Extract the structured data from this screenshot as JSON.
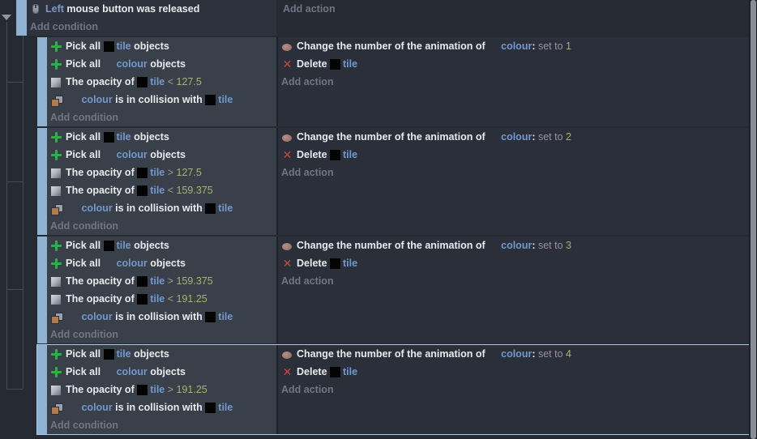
{
  "colors": {
    "page_bg": "#252a33",
    "condition_panel_bg": "#394049",
    "action_panel_bg": "#2a2f39",
    "root_event_bg": "#2d323d",
    "event_handle_blue": "#8fb2d3",
    "selection_border": "#a9cde6",
    "object_name_blue": "#7298cc",
    "number_green": "#a9b173",
    "set_to_mauve": "#9e8fa0",
    "placeholder_gray": "#6f7684",
    "pick_all_green": "#2fb045",
    "delete_red": "#c8493a"
  },
  "root_event": {
    "condition": {
      "icon": "mouse",
      "segs": [
        {
          "t": "param",
          "v": "Left"
        },
        {
          "t": "w",
          "v": " mouse button was released"
        }
      ]
    },
    "add_condition": "Add condition",
    "add_action": "Add action"
  },
  "blocks": [
    {
      "selected": false,
      "conditions": [
        {
          "icon": "pick-all",
          "segs": [
            {
              "t": "w",
              "v": "Pick all "
            },
            {
              "t": "obj",
              "v": "tile",
              "thumb": "black"
            },
            {
              "t": "w",
              "v": " objects"
            }
          ]
        },
        {
          "icon": "pick-all",
          "segs": [
            {
              "t": "w",
              "v": "Pick all "
            },
            {
              "t": "obj",
              "v": "colour",
              "thumb": "none"
            },
            {
              "t": "w",
              "v": " objects"
            }
          ]
        },
        {
          "icon": "opacity",
          "segs": [
            {
              "t": "w",
              "v": "The opacity of "
            },
            {
              "t": "obj",
              "v": "tile",
              "thumb": "black"
            },
            {
              "t": "op",
              "v": " < "
            },
            {
              "t": "num",
              "v": "127.5"
            }
          ]
        },
        {
          "icon": "collision",
          "segs": [
            {
              "t": "w",
              "v": " "
            },
            {
              "t": "obj",
              "v": "colour",
              "thumb": "none"
            },
            {
              "t": "w",
              "v": " is in collision with "
            },
            {
              "t": "obj",
              "v": "tile",
              "thumb": "black"
            }
          ]
        }
      ],
      "actions": [
        {
          "icon": "animation",
          "segs": [
            {
              "t": "w",
              "v": "Change the number of the animation of "
            },
            {
              "t": "obj",
              "v": "colour",
              "thumb": "none"
            },
            {
              "t": "w",
              "v": ": "
            },
            {
              "t": "setto",
              "v": "set to "
            },
            {
              "t": "num",
              "v": "1"
            }
          ]
        },
        {
          "icon": "delete",
          "segs": [
            {
              "t": "w",
              "v": "Delete "
            },
            {
              "t": "obj",
              "v": "tile",
              "thumb": "black"
            }
          ]
        }
      ],
      "add_condition": "Add condition",
      "add_action": "Add action"
    },
    {
      "selected": false,
      "conditions": [
        {
          "icon": "pick-all",
          "segs": [
            {
              "t": "w",
              "v": "Pick all "
            },
            {
              "t": "obj",
              "v": "tile",
              "thumb": "black"
            },
            {
              "t": "w",
              "v": " objects"
            }
          ]
        },
        {
          "icon": "pick-all",
          "segs": [
            {
              "t": "w",
              "v": "Pick all "
            },
            {
              "t": "obj",
              "v": "colour",
              "thumb": "none"
            },
            {
              "t": "w",
              "v": " objects"
            }
          ]
        },
        {
          "icon": "opacity",
          "segs": [
            {
              "t": "w",
              "v": "The opacity of "
            },
            {
              "t": "obj",
              "v": "tile",
              "thumb": "black"
            },
            {
              "t": "op",
              "v": " > "
            },
            {
              "t": "num",
              "v": "127.5"
            }
          ]
        },
        {
          "icon": "opacity",
          "segs": [
            {
              "t": "w",
              "v": "The opacity of "
            },
            {
              "t": "obj",
              "v": "tile",
              "thumb": "black"
            },
            {
              "t": "op",
              "v": " < "
            },
            {
              "t": "num",
              "v": "159.375"
            }
          ]
        },
        {
          "icon": "collision",
          "segs": [
            {
              "t": "w",
              "v": " "
            },
            {
              "t": "obj",
              "v": "colour",
              "thumb": "none"
            },
            {
              "t": "w",
              "v": " is in collision with "
            },
            {
              "t": "obj",
              "v": "tile",
              "thumb": "black"
            }
          ]
        }
      ],
      "actions": [
        {
          "icon": "animation",
          "segs": [
            {
              "t": "w",
              "v": "Change the number of the animation of "
            },
            {
              "t": "obj",
              "v": "colour",
              "thumb": "none"
            },
            {
              "t": "w",
              "v": ": "
            },
            {
              "t": "setto",
              "v": "set to "
            },
            {
              "t": "num",
              "v": "2"
            }
          ]
        },
        {
          "icon": "delete",
          "segs": [
            {
              "t": "w",
              "v": "Delete "
            },
            {
              "t": "obj",
              "v": "tile",
              "thumb": "black"
            }
          ]
        }
      ],
      "add_condition": "Add condition",
      "add_action": "Add action"
    },
    {
      "selected": false,
      "conditions": [
        {
          "icon": "pick-all",
          "segs": [
            {
              "t": "w",
              "v": "Pick all "
            },
            {
              "t": "obj",
              "v": "tile",
              "thumb": "black"
            },
            {
              "t": "w",
              "v": " objects"
            }
          ]
        },
        {
          "icon": "pick-all",
          "segs": [
            {
              "t": "w",
              "v": "Pick all "
            },
            {
              "t": "obj",
              "v": "colour",
              "thumb": "none"
            },
            {
              "t": "w",
              "v": " objects"
            }
          ]
        },
        {
          "icon": "opacity",
          "segs": [
            {
              "t": "w",
              "v": "The opacity of "
            },
            {
              "t": "obj",
              "v": "tile",
              "thumb": "black"
            },
            {
              "t": "op",
              "v": " > "
            },
            {
              "t": "num",
              "v": "159.375"
            }
          ]
        },
        {
          "icon": "opacity",
          "segs": [
            {
              "t": "w",
              "v": "The opacity of "
            },
            {
              "t": "obj",
              "v": "tile",
              "thumb": "black"
            },
            {
              "t": "op",
              "v": " < "
            },
            {
              "t": "num",
              "v": "191.25"
            }
          ]
        },
        {
          "icon": "collision",
          "segs": [
            {
              "t": "w",
              "v": " "
            },
            {
              "t": "obj",
              "v": "colour",
              "thumb": "none"
            },
            {
              "t": "w",
              "v": " is in collision with "
            },
            {
              "t": "obj",
              "v": "tile",
              "thumb": "black"
            }
          ]
        }
      ],
      "actions": [
        {
          "icon": "animation",
          "segs": [
            {
              "t": "w",
              "v": "Change the number of the animation of "
            },
            {
              "t": "obj",
              "v": "colour",
              "thumb": "none"
            },
            {
              "t": "w",
              "v": ": "
            },
            {
              "t": "setto",
              "v": "set to "
            },
            {
              "t": "num",
              "v": "3"
            }
          ]
        },
        {
          "icon": "delete",
          "segs": [
            {
              "t": "w",
              "v": "Delete "
            },
            {
              "t": "obj",
              "v": "tile",
              "thumb": "black"
            }
          ]
        }
      ],
      "add_condition": "Add condition",
      "add_action": "Add action"
    },
    {
      "selected": true,
      "conditions": [
        {
          "icon": "pick-all",
          "segs": [
            {
              "t": "w",
              "v": "Pick all "
            },
            {
              "t": "obj",
              "v": "tile",
              "thumb": "black"
            },
            {
              "t": "w",
              "v": " objects"
            }
          ]
        },
        {
          "icon": "pick-all",
          "segs": [
            {
              "t": "w",
              "v": "Pick all "
            },
            {
              "t": "obj",
              "v": "colour",
              "thumb": "none"
            },
            {
              "t": "w",
              "v": " objects"
            }
          ]
        },
        {
          "icon": "opacity",
          "segs": [
            {
              "t": "w",
              "v": "The opacity of "
            },
            {
              "t": "obj",
              "v": "tile",
              "thumb": "black"
            },
            {
              "t": "op",
              "v": " > "
            },
            {
              "t": "num",
              "v": "191.25"
            }
          ]
        },
        {
          "icon": "collision",
          "segs": [
            {
              "t": "w",
              "v": " "
            },
            {
              "t": "obj",
              "v": "colour",
              "thumb": "none"
            },
            {
              "t": "w",
              "v": " is in collision with "
            },
            {
              "t": "obj",
              "v": "tile",
              "thumb": "black"
            }
          ]
        }
      ],
      "actions": [
        {
          "icon": "animation",
          "segs": [
            {
              "t": "w",
              "v": "Change the number of the animation of "
            },
            {
              "t": "obj",
              "v": "colour",
              "thumb": "none"
            },
            {
              "t": "w",
              "v": ": "
            },
            {
              "t": "setto",
              "v": "set to "
            },
            {
              "t": "num",
              "v": "4"
            }
          ]
        },
        {
          "icon": "delete",
          "segs": [
            {
              "t": "w",
              "v": "Delete "
            },
            {
              "t": "obj",
              "v": "tile",
              "thumb": "black"
            }
          ]
        }
      ],
      "add_condition": "Add condition",
      "add_action": "Add action"
    }
  ]
}
